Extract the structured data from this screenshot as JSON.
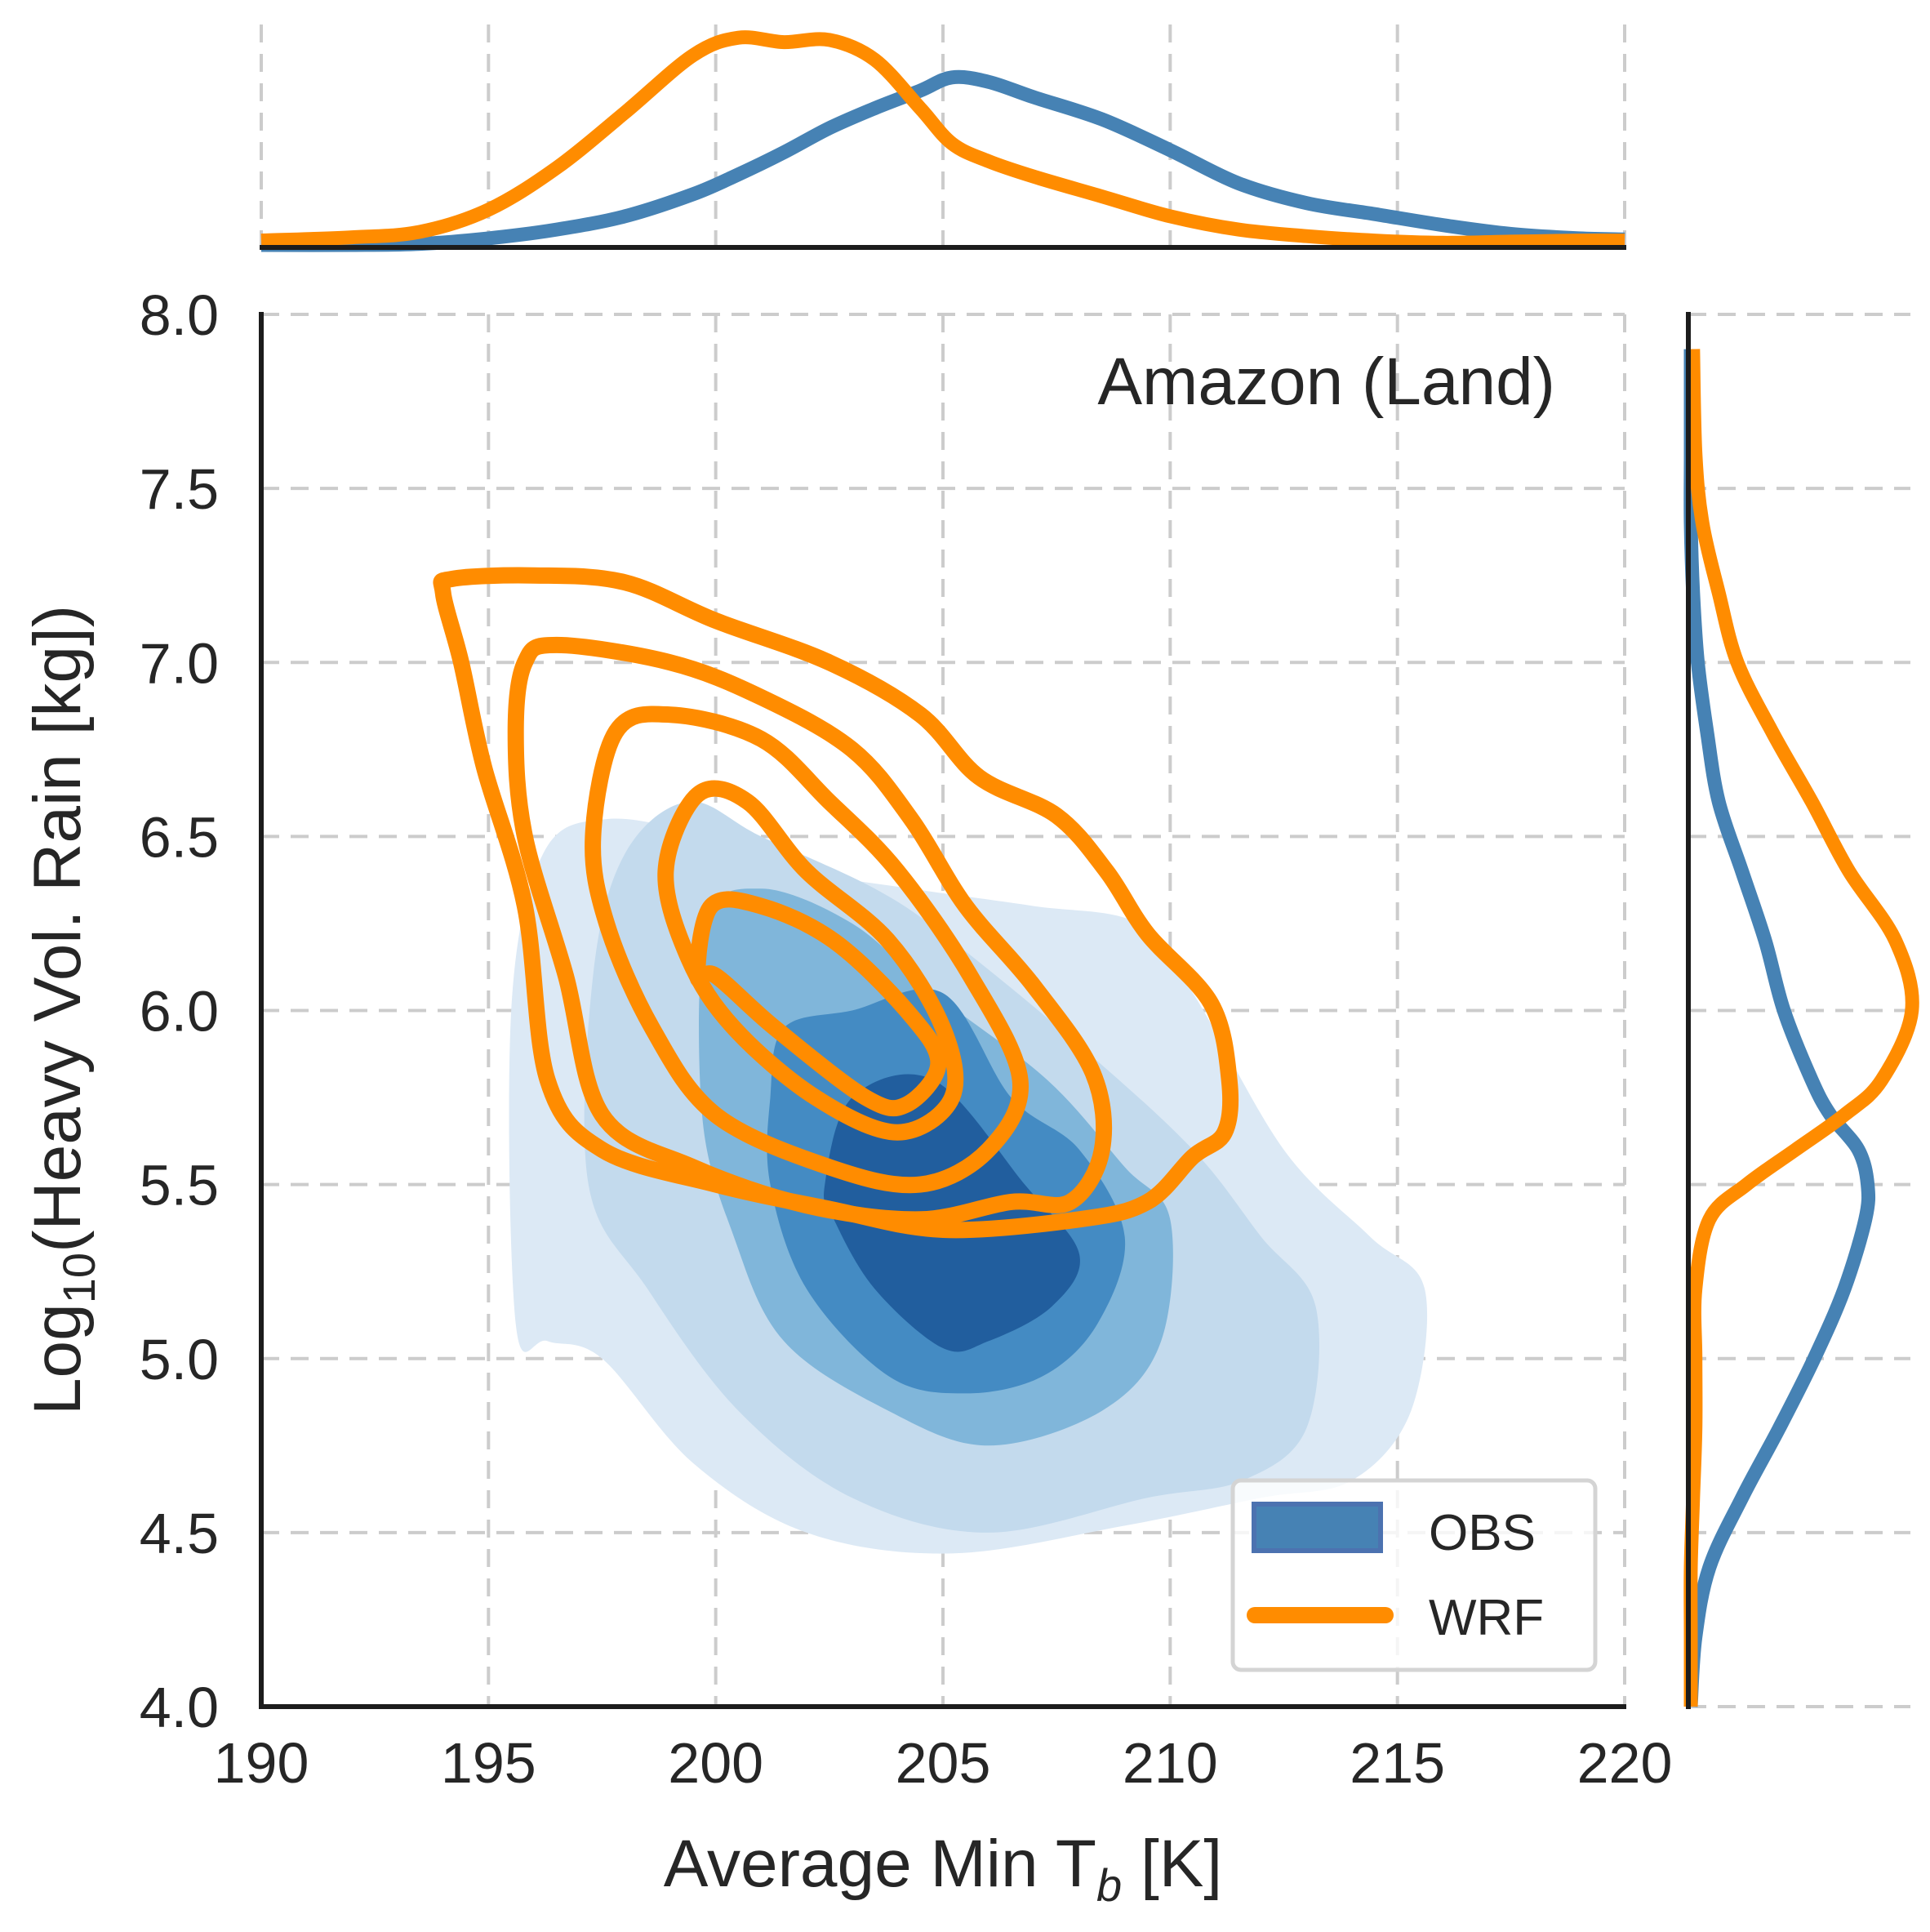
{
  "chart_data": {
    "type": "kde-joint",
    "title": "",
    "annotation": "Amazon (Land)",
    "xlabel_main": "Average Min T",
    "xlabel_sub": "b",
    "xlabel_tail": " [K]",
    "ylabel_main": "Log",
    "ylabel_sub": "10",
    "ylabel_tail": "(Heavy Vol. Rain [kg])",
    "xlim": [
      190,
      220
    ],
    "ylim": [
      4.0,
      8.0
    ],
    "xticks": [
      190,
      195,
      200,
      205,
      210,
      215,
      220
    ],
    "xtick_labels": [
      "190",
      "195",
      "200",
      "205",
      "210",
      "215",
      "220"
    ],
    "yticks": [
      4.0,
      4.5,
      5.0,
      5.5,
      6.0,
      6.5,
      7.0,
      7.5,
      8.0
    ],
    "ytick_labels": [
      "4.0",
      "4.5",
      "5.0",
      "5.5",
      "6.0",
      "6.5",
      "7.0",
      "7.5",
      "8.0"
    ],
    "grid": true,
    "legend": {
      "placement": "lower-right",
      "entries": [
        {
          "label": "OBS",
          "color": "#4682b4",
          "style": "filled"
        },
        {
          "label": "WRF",
          "color": "#ff8c00",
          "style": "line"
        }
      ]
    },
    "colors": {
      "obs": "#4682b4",
      "wrf": "#ff8c00",
      "obs_levels": [
        "#dce9f5",
        "#c3daed",
        "#80b6da",
        "#448bc3",
        "#215e9e"
      ],
      "grid": "#cccccc",
      "spine": "#1c1c1c",
      "text": "#262626"
    },
    "obs_contours": [
      {
        "level": 1,
        "points": [
          [
            195.6,
            5.1
          ],
          [
            195.5,
            6.0
          ],
          [
            196.2,
            6.45
          ],
          [
            197.6,
            6.55
          ],
          [
            199.8,
            6.5
          ],
          [
            202,
            6.4
          ],
          [
            204.3,
            6.35
          ],
          [
            207,
            6.3
          ],
          [
            209.3,
            6.25
          ],
          [
            210.5,
            6.05
          ],
          [
            212.5,
            5.6
          ],
          [
            214.4,
            5.35
          ],
          [
            215.6,
            5.2
          ],
          [
            215.3,
            4.85
          ],
          [
            214,
            4.65
          ],
          [
            212,
            4.6
          ],
          [
            209,
            4.52
          ],
          [
            205.2,
            4.44
          ],
          [
            202,
            4.5
          ],
          [
            199.5,
            4.7
          ],
          [
            197.5,
            5.0
          ],
          [
            196.3,
            5.05
          ]
        ]
      },
      {
        "level": 2,
        "points": [
          [
            197.2,
            5.5
          ],
          [
            197.3,
            6.1
          ],
          [
            198,
            6.45
          ],
          [
            199.4,
            6.6
          ],
          [
            201,
            6.5
          ],
          [
            203.5,
            6.35
          ],
          [
            205.2,
            6.2
          ],
          [
            208,
            5.9
          ],
          [
            210.5,
            5.6
          ],
          [
            212,
            5.35
          ],
          [
            213.2,
            5.15
          ],
          [
            213,
            4.8
          ],
          [
            211.6,
            4.65
          ],
          [
            209.5,
            4.6
          ],
          [
            206,
            4.5
          ],
          [
            203,
            4.6
          ],
          [
            200.5,
            4.85
          ],
          [
            198.5,
            5.2
          ]
        ]
      },
      {
        "level": 3,
        "points": [
          [
            199.7,
            5.7
          ],
          [
            199.8,
            6.25
          ],
          [
            201,
            6.35
          ],
          [
            203,
            6.25
          ],
          [
            204.8,
            6.05
          ],
          [
            207.3,
            5.8
          ],
          [
            209,
            5.55
          ],
          [
            210,
            5.4
          ],
          [
            209.8,
            5.05
          ],
          [
            208.5,
            4.85
          ],
          [
            206,
            4.75
          ],
          [
            203.8,
            4.85
          ],
          [
            201.5,
            5.05
          ],
          [
            200.4,
            5.35
          ]
        ]
      },
      {
        "level": 4,
        "points": [
          [
            201.2,
            5.5
          ],
          [
            201.2,
            5.75
          ],
          [
            201.5,
            5.95
          ],
          [
            203,
            6.0
          ],
          [
            205,
            6.05
          ],
          [
            206.5,
            5.75
          ],
          [
            208,
            5.6
          ],
          [
            209,
            5.35
          ],
          [
            208.4,
            5.1
          ],
          [
            207.2,
            4.95
          ],
          [
            205.5,
            4.9
          ],
          [
            203.8,
            4.95
          ],
          [
            202,
            5.2
          ]
        ]
      },
      {
        "level": 5,
        "points": [
          [
            202.4,
            5.5
          ],
          [
            203,
            5.75
          ],
          [
            204.8,
            5.8
          ],
          [
            206.8,
            5.5
          ],
          [
            208,
            5.3
          ],
          [
            207.4,
            5.15
          ],
          [
            206,
            5.05
          ],
          [
            205,
            5.03
          ],
          [
            203.5,
            5.2
          ],
          [
            202.6,
            5.4
          ]
        ]
      }
    ],
    "wrf_contours": [
      {
        "level": 1,
        "points": [
          [
            194,
            7.2
          ],
          [
            194.2,
            7.24
          ],
          [
            196,
            7.25
          ],
          [
            198,
            7.23
          ],
          [
            200,
            7.12
          ],
          [
            202.5,
            7.0
          ],
          [
            204.5,
            6.85
          ],
          [
            205.8,
            6.67
          ],
          [
            207.5,
            6.56
          ],
          [
            208.6,
            6.4
          ],
          [
            209.5,
            6.22
          ],
          [
            210.9,
            6.02
          ],
          [
            211.3,
            5.8
          ],
          [
            211.2,
            5.65
          ],
          [
            210.5,
            5.58
          ],
          [
            209.5,
            5.45
          ],
          [
            208,
            5.4
          ],
          [
            205,
            5.37
          ],
          [
            202.5,
            5.43
          ],
          [
            200,
            5.5
          ],
          [
            197.5,
            5.6
          ],
          [
            196.3,
            5.8
          ],
          [
            195.8,
            6.3
          ],
          [
            194.9,
            6.7
          ],
          [
            194.4,
            7.0
          ]
        ]
      },
      {
        "level": 2,
        "points": [
          [
            195.6,
            6.8
          ],
          [
            195.8,
            7.0
          ],
          [
            196.5,
            7.05
          ],
          [
            199,
            7.0
          ],
          [
            201,
            6.9
          ],
          [
            203,
            6.75
          ],
          [
            204.3,
            6.55
          ],
          [
            205.5,
            6.3
          ],
          [
            207,
            6.07
          ],
          [
            208.3,
            5.82
          ],
          [
            208.5,
            5.6
          ],
          [
            207.8,
            5.45
          ],
          [
            206.5,
            5.45
          ],
          [
            204.5,
            5.4
          ],
          [
            202,
            5.44
          ],
          [
            199.5,
            5.55
          ],
          [
            197.5,
            5.7
          ],
          [
            196.7,
            6.1
          ],
          [
            195.8,
            6.5
          ]
        ]
      },
      {
        "level": 3,
        "points": [
          [
            197.3,
            6.5
          ],
          [
            197.8,
            6.8
          ],
          [
            199,
            6.85
          ],
          [
            201,
            6.78
          ],
          [
            202.5,
            6.6
          ],
          [
            204,
            6.4
          ],
          [
            205.6,
            6.1
          ],
          [
            206.7,
            5.8
          ],
          [
            206,
            5.6
          ],
          [
            204.5,
            5.5
          ],
          [
            202.5,
            5.55
          ],
          [
            200,
            5.7
          ],
          [
            198.6,
            5.95
          ],
          [
            197.6,
            6.25
          ]
        ]
      },
      {
        "level": 4,
        "points": [
          [
            198.9,
            6.4
          ],
          [
            199.6,
            6.62
          ],
          [
            200.7,
            6.6
          ],
          [
            202,
            6.4
          ],
          [
            203.8,
            6.2
          ],
          [
            205,
            5.95
          ],
          [
            205.2,
            5.75
          ],
          [
            204,
            5.65
          ],
          [
            202.2,
            5.75
          ],
          [
            200.4,
            5.95
          ],
          [
            199.4,
            6.15
          ]
        ]
      },
      {
        "level": 5,
        "points": [
          [
            199.6,
            6.1
          ],
          [
            199.9,
            6.3
          ],
          [
            201,
            6.3
          ],
          [
            202.6,
            6.2
          ],
          [
            204.2,
            6.0
          ],
          [
            204.9,
            5.85
          ],
          [
            204.2,
            5.73
          ],
          [
            203.3,
            5.75
          ],
          [
            201.3,
            5.95
          ],
          [
            200,
            6.1
          ]
        ]
      }
    ],
    "top_marginal": {
      "x": [
        190,
        192,
        193.5,
        195,
        196.5,
        198,
        199.5,
        200.5,
        201.5,
        202.5,
        203.5,
        204.5,
        205.2,
        206,
        207,
        208.5,
        210,
        211.5,
        213,
        214.5,
        216,
        217.5,
        219,
        220
      ],
      "obs": [
        0,
        0,
        0.005,
        0.03,
        0.07,
        0.13,
        0.23,
        0.32,
        0.42,
        0.53,
        0.62,
        0.7,
        0.76,
        0.74,
        0.67,
        0.57,
        0.43,
        0.28,
        0.19,
        0.14,
        0.09,
        0.05,
        0.03,
        0.025
      ],
      "wrf": [
        0.02,
        0.035,
        0.06,
        0.16,
        0.35,
        0.6,
        0.86,
        0.94,
        0.92,
        0.93,
        0.84,
        0.62,
        0.46,
        0.38,
        0.31,
        0.22,
        0.13,
        0.07,
        0.04,
        0.02,
        0.01,
        0.015,
        0.02,
        0.02
      ]
    },
    "right_marginal": {
      "y": [
        4.0,
        4.2,
        4.4,
        4.6,
        4.8,
        5.0,
        5.2,
        5.4,
        5.5,
        5.6,
        5.7,
        5.8,
        6.0,
        6.2,
        6.4,
        6.6,
        6.8,
        7.0,
        7.2,
        7.4,
        7.6,
        7.9
      ],
      "obs": [
        0.0,
        0.02,
        0.08,
        0.22,
        0.38,
        0.53,
        0.66,
        0.75,
        0.76,
        0.72,
        0.6,
        0.52,
        0.4,
        0.32,
        0.22,
        0.12,
        0.07,
        0.03,
        0.01,
        0.0,
        0.0,
        0.0
      ],
      "wrf": [
        0.0,
        0.0,
        0.0,
        0.01,
        0.02,
        0.02,
        0.02,
        0.08,
        0.24,
        0.45,
        0.66,
        0.82,
        0.95,
        0.88,
        0.68,
        0.52,
        0.35,
        0.2,
        0.12,
        0.05,
        0.02,
        0.01
      ]
    }
  }
}
